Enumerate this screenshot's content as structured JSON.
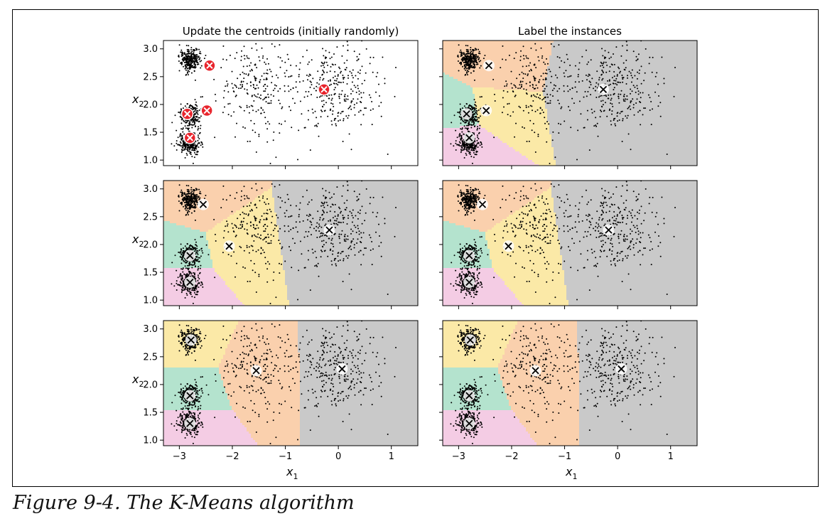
{
  "caption": "Figure 9-4. The K-Means algorithm",
  "columns": [
    {
      "title": "Update the centroids (initially randomly)"
    },
    {
      "title": "Label the instances"
    }
  ],
  "axes": {
    "xlabel": "x1",
    "ylabel": "x2",
    "x_ticks": [
      "−3",
      "−2",
      "−1",
      "0",
      "1"
    ],
    "y_ticks": [
      "1.0",
      "1.5",
      "2.0",
      "2.5",
      "3.0"
    ],
    "xlim": [
      -3.3,
      1.5
    ],
    "ylim": [
      0.9,
      3.15
    ]
  },
  "colors": {
    "cluster_fills": [
      "#f4cce4",
      "#b4e3ce",
      "#fbe9a7",
      "#fad0ad",
      "#c9c9c9"
    ],
    "centroid_red": "#e8242c",
    "point": "#000000"
  },
  "chart_data": {
    "type": "scatter",
    "title": "",
    "blobs": [
      {
        "center": [
          -2.8,
          1.3
        ],
        "std": 0.1,
        "count": 300
      },
      {
        "center": [
          -2.8,
          1.8
        ],
        "std": 0.1,
        "count": 300
      },
      {
        "center": [
          -2.8,
          2.8
        ],
        "std": 0.1,
        "count": 300
      },
      {
        "center": [
          -1.5,
          2.3
        ],
        "std": 0.4,
        "count": 250
      },
      {
        "center": [
          0.0,
          2.3
        ],
        "std": 0.4,
        "count": 300
      }
    ],
    "panels": [
      {
        "row": 0,
        "col": 0,
        "centroids": [
          [
            -2.8,
            1.4
          ],
          [
            -2.85,
            1.83
          ],
          [
            -2.48,
            1.89
          ],
          [
            -2.43,
            2.7
          ],
          [
            -0.27,
            2.27
          ]
        ],
        "style": "red",
        "regions": false
      },
      {
        "row": 0,
        "col": 1,
        "centroids": [
          [
            -2.8,
            1.4
          ],
          [
            -2.85,
            1.83
          ],
          [
            -2.48,
            1.89
          ],
          [
            -2.43,
            2.7
          ],
          [
            -0.27,
            2.27
          ]
        ],
        "style": "white",
        "regions": true
      },
      {
        "row": 1,
        "col": 0,
        "centroids": [
          [
            -2.8,
            1.32
          ],
          [
            -2.8,
            1.8
          ],
          [
            -2.06,
            1.97
          ],
          [
            -2.55,
            2.72
          ],
          [
            -0.17,
            2.26
          ]
        ],
        "style": "white",
        "regions": true
      },
      {
        "row": 1,
        "col": 1,
        "centroids": [
          [
            -2.8,
            1.32
          ],
          [
            -2.8,
            1.8
          ],
          [
            -2.06,
            1.97
          ],
          [
            -2.55,
            2.72
          ],
          [
            -0.17,
            2.26
          ]
        ],
        "style": "white",
        "regions": true
      },
      {
        "row": 2,
        "col": 0,
        "centroids": [
          [
            -2.8,
            1.3
          ],
          [
            -2.8,
            1.8
          ],
          [
            -2.78,
            2.8
          ],
          [
            -1.55,
            2.25
          ],
          [
            0.07,
            2.28
          ]
        ],
        "style": "white",
        "regions": true
      },
      {
        "row": 2,
        "col": 1,
        "centroids": [
          [
            -2.8,
            1.3
          ],
          [
            -2.8,
            1.8
          ],
          [
            -2.78,
            2.8
          ],
          [
            -1.55,
            2.25
          ],
          [
            0.07,
            2.28
          ]
        ],
        "style": "white",
        "regions": true
      }
    ]
  }
}
